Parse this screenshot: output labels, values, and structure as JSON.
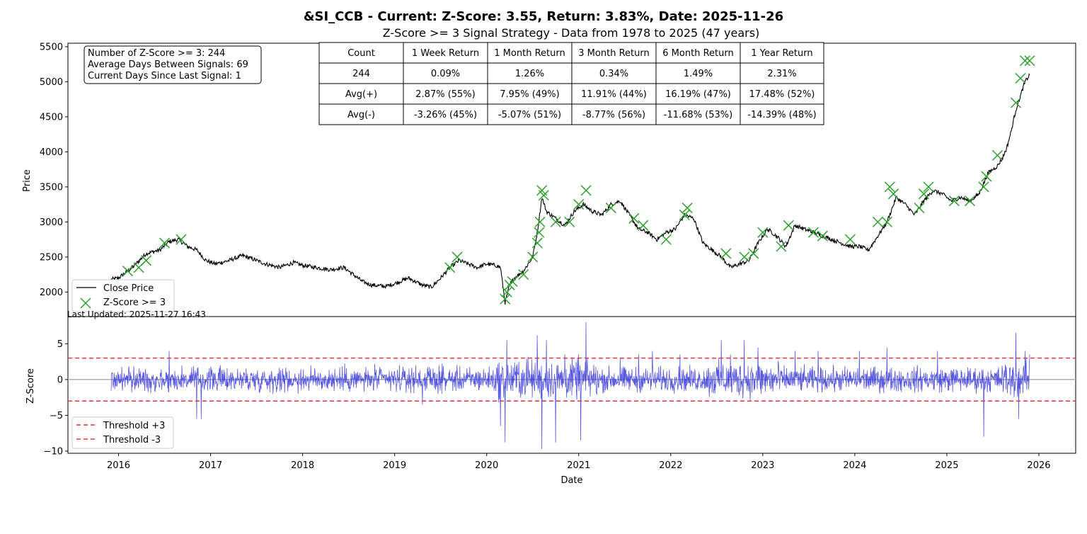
{
  "title": "&SI_CCB - Current: Z-Score: 3.55, Return: 3.83%, Date: 2025-11-26",
  "subtitle": "Z-Score >= 3 Signal Strategy - Data from 1978 to 2025 (47 years)",
  "info_box": [
    "Number of Z-Score >= 3: 244",
    "Average Days Between Signals: 69",
    "Current Days Since Last Signal: 1"
  ],
  "stats_table": {
    "header": [
      "Count",
      "1 Week Return",
      "1 Month Return",
      "3 Month Return",
      "6 Month Return",
      "1 Year Return"
    ],
    "rows": [
      [
        "244",
        "0.09%",
        "1.26%",
        "0.34%",
        "1.49%",
        "2.31%"
      ],
      [
        "Avg(+)",
        "2.87% (55%)",
        "7.95% (49%)",
        "11.91% (44%)",
        "16.19% (47%)",
        "17.48% (52%)"
      ],
      [
        "Avg(-)",
        "-3.26% (45%)",
        "-5.07% (51%)",
        "-8.77% (56%)",
        "-11.68% (53%)",
        "-14.39% (48%)"
      ]
    ]
  },
  "last_updated": "Last Updated: 2025-11-27 16:43",
  "colors": {
    "price_line": "#000000",
    "signal_marker": "#2ca02c",
    "zscore_line": "#3b3bdc",
    "threshold": "#e8373a",
    "zero_line": "#b0b0b0"
  },
  "chart_data": [
    {
      "type": "line",
      "ylabel": "Price",
      "ylim": [
        1650,
        5550
      ],
      "yticks": [
        2000,
        2500,
        3000,
        3500,
        4000,
        4500,
        5000,
        5500
      ],
      "legend": {
        "placement": "lower-left",
        "entries": [
          "Close Price",
          "Z-Score >= 3"
        ]
      },
      "series": [
        {
          "name": "Close Price",
          "x": [
            2015.92,
            2016.0,
            2016.15,
            2016.3,
            2016.45,
            2016.55,
            2016.65,
            2016.75,
            2016.85,
            2016.95,
            2017.05,
            2017.2,
            2017.35,
            2017.5,
            2017.6,
            2017.75,
            2017.9,
            2018.0,
            2018.15,
            2018.3,
            2018.45,
            2018.55,
            2018.65,
            2018.75,
            2018.9,
            2019.0,
            2019.15,
            2019.3,
            2019.4,
            2019.5,
            2019.6,
            2019.7,
            2019.8,
            2019.9,
            2020.0,
            2020.1,
            2020.15,
            2020.2,
            2020.25,
            2020.3,
            2020.4,
            2020.5,
            2020.55,
            2020.6,
            2020.65,
            2020.75,
            2020.85,
            2020.95,
            2021.05,
            2021.15,
            2021.25,
            2021.35,
            2021.45,
            2021.55,
            2021.65,
            2021.75,
            2021.85,
            2021.95,
            2022.05,
            2022.15,
            2022.25,
            2022.35,
            2022.45,
            2022.55,
            2022.65,
            2022.75,
            2022.85,
            2022.95,
            2023.05,
            2023.15,
            2023.25,
            2023.35,
            2023.45,
            2023.55,
            2023.65,
            2023.75,
            2023.85,
            2023.95,
            2024.05,
            2024.15,
            2024.25,
            2024.35,
            2024.45,
            2024.55,
            2024.65,
            2024.75,
            2024.85,
            2024.95,
            2025.05,
            2025.15,
            2025.25,
            2025.35,
            2025.45,
            2025.55,
            2025.6,
            2025.65,
            2025.7,
            2025.75,
            2025.8,
            2025.85,
            2025.9
          ],
          "values": [
            2180,
            2200,
            2350,
            2550,
            2600,
            2720,
            2750,
            2650,
            2600,
            2450,
            2400,
            2450,
            2520,
            2450,
            2400,
            2350,
            2420,
            2380,
            2350,
            2320,
            2350,
            2250,
            2150,
            2100,
            2080,
            2120,
            2200,
            2100,
            2070,
            2200,
            2350,
            2450,
            2400,
            2350,
            2400,
            2380,
            2350,
            1850,
            2100,
            2200,
            2300,
            2500,
            2850,
            3350,
            3150,
            3050,
            2950,
            3150,
            3250,
            3150,
            3100,
            3250,
            3300,
            3100,
            2900,
            2850,
            2750,
            2850,
            2900,
            3100,
            3050,
            2700,
            2600,
            2500,
            2350,
            2400,
            2450,
            2700,
            2900,
            2800,
            2650,
            2950,
            2900,
            2850,
            2800,
            2750,
            2700,
            2650,
            2650,
            2600,
            2800,
            3000,
            3350,
            3250,
            3100,
            3300,
            3450,
            3400,
            3300,
            3350,
            3300,
            3400,
            3700,
            3800,
            3900,
            4050,
            4300,
            4600,
            4800,
            5000,
            5100
          ]
        },
        {
          "name": "Z-Score >= 3",
          "x": [
            2016.1,
            2016.22,
            2016.3,
            2016.5,
            2016.68,
            2019.6,
            2019.68,
            2020.2,
            2020.22,
            2020.25,
            2020.28,
            2020.4,
            2020.5,
            2020.55,
            2020.57,
            2020.58,
            2020.6,
            2020.62,
            2020.75,
            2020.9,
            2021.0,
            2021.08,
            2021.35,
            2021.6,
            2021.7,
            2021.95,
            2022.15,
            2022.18,
            2022.6,
            2022.8,
            2022.9,
            2023.0,
            2023.2,
            2023.28,
            2023.55,
            2023.65,
            2023.95,
            2024.25,
            2024.35,
            2024.38,
            2024.42,
            2024.7,
            2024.75,
            2024.8,
            2025.08,
            2025.25,
            2025.4,
            2025.43,
            2025.55,
            2025.75,
            2025.8,
            2025.85,
            2025.9
          ],
          "values": [
            2300,
            2350,
            2450,
            2700,
            2750,
            2350,
            2500,
            1900,
            2000,
            2100,
            2150,
            2250,
            2500,
            2700,
            2850,
            3000,
            3450,
            3380,
            3000,
            3000,
            3250,
            3450,
            3200,
            3050,
            2950,
            2750,
            3100,
            3200,
            2550,
            2500,
            2550,
            2850,
            2650,
            2950,
            2850,
            2800,
            2750,
            3000,
            3000,
            3500,
            3400,
            3200,
            3400,
            3500,
            3300,
            3300,
            3500,
            3650,
            3950,
            4700,
            5050,
            5300,
            5300
          ]
        }
      ]
    },
    {
      "type": "line",
      "xlabel": "Date",
      "ylabel": "Z-Score",
      "xlim": [
        2015.45,
        2026.4
      ],
      "ylim": [
        -10.3,
        8.8
      ],
      "xticks": [
        2016,
        2017,
        2018,
        2019,
        2020,
        2021,
        2022,
        2023,
        2024,
        2025,
        2026
      ],
      "yticks": [
        -10,
        -5,
        0,
        5
      ],
      "legend": {
        "placement": "lower-left",
        "entries": [
          "Threshold +3",
          "Threshold -3"
        ]
      },
      "thresholds": [
        3,
        -3
      ],
      "series": [
        {
          "name": "Z-Score",
          "x": [
            2016.55,
            2016.85,
            2016.9,
            2019.3,
            2020.15,
            2020.2,
            2020.22,
            2020.35,
            2020.45,
            2020.55,
            2020.6,
            2020.65,
            2020.75,
            2020.85,
            2021.0,
            2021.02,
            2021.08,
            2021.45,
            2021.65,
            2021.8,
            2022.1,
            2022.55,
            2022.65,
            2022.8,
            2022.95,
            2023.35,
            2023.6,
            2024.05,
            2024.35,
            2024.9,
            2025.4,
            2025.75,
            2025.78,
            2025.85,
            2025.9
          ],
          "values": [
            4.0,
            -5.5,
            -5.5,
            -3.5,
            -6.5,
            -8.8,
            5.5,
            2.5,
            3.2,
            6.2,
            -9.7,
            5.5,
            -8.8,
            3.5,
            3.5,
            -8.5,
            8.0,
            3.0,
            3.5,
            4.0,
            3.5,
            5.5,
            3.5,
            5.5,
            4.5,
            4.0,
            4.0,
            4.0,
            4.5,
            4.0,
            -8.0,
            6.5,
            -5.5,
            4.0,
            3.5
          ]
        }
      ]
    }
  ]
}
